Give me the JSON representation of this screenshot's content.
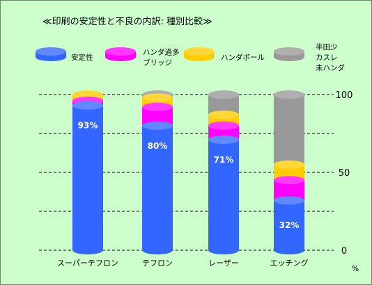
{
  "chart_data": {
    "type": "bar",
    "title": "≪印刷の安定性と不良の内訳: 種別比較≫",
    "categories": [
      "スーパーテフロン",
      "テフロン",
      "レーザー",
      "エッチング"
    ],
    "series": [
      {
        "name": "安定性",
        "color": "#3366ff",
        "values": [
          93,
          80,
          71,
          32
        ]
      },
      {
        "name": "ハンダ過多\nブリッジ",
        "color": "#ff00ff",
        "values": [
          3,
          12,
          9,
          13
        ]
      },
      {
        "name": "ハンダボール",
        "color": "#ffcc00",
        "values": [
          4,
          6,
          7,
          10
        ]
      },
      {
        "name": "半田少\nカスレ\n未ハンダ",
        "color": "#999999",
        "values": [
          0,
          2,
          13,
          45
        ]
      }
    ],
    "data_labels": [
      "93%",
      "80%",
      "71%",
      "32%"
    ],
    "yticks": [
      0,
      50,
      100
    ],
    "ylim": [
      0,
      100
    ],
    "ylabel": "%",
    "grid": true,
    "legend": "top"
  }
}
